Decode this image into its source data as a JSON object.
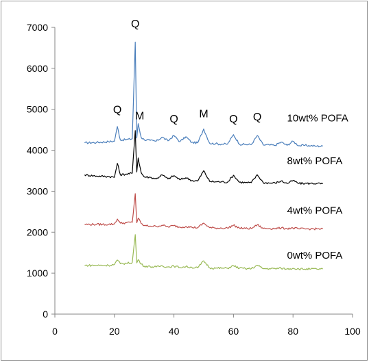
{
  "chart_data": {
    "type": "line",
    "title": "",
    "xlabel": "",
    "ylabel": "",
    "xlim": [
      0,
      100
    ],
    "ylim": [
      0,
      7000
    ],
    "x_ticks": [
      "0",
      "20",
      "40",
      "60",
      "80",
      "100"
    ],
    "y_ticks": [
      "0",
      "1000",
      "2000",
      "3000",
      "4000",
      "5000",
      "6000",
      "7000"
    ],
    "grid": false,
    "legend": "none",
    "series": [
      {
        "name": "10wt% POFA",
        "color": "#4a7ebb",
        "x": [
          10,
          14,
          18,
          20,
          21,
          22,
          24,
          26,
          27,
          27.5,
          28,
          29,
          30,
          32,
          34,
          36,
          38,
          40,
          42,
          44,
          46,
          48,
          50,
          52,
          54,
          56,
          58,
          60,
          62,
          64,
          66,
          68,
          70,
          72,
          74,
          76,
          78,
          80,
          82,
          84,
          86,
          88,
          90
        ],
        "y": [
          4180,
          4190,
          4210,
          4220,
          4580,
          4250,
          4260,
          4280,
          6640,
          4300,
          4650,
          4310,
          4260,
          4240,
          4220,
          4320,
          4230,
          4360,
          4210,
          4330,
          4190,
          4180,
          4520,
          4170,
          4160,
          4150,
          4150,
          4380,
          4150,
          4140,
          4140,
          4360,
          4130,
          4130,
          4120,
          4200,
          4120,
          4220,
          4110,
          4120,
          4110,
          4100,
          4100
        ]
      },
      {
        "name": "8wt% POFA",
        "color": "#000000",
        "x": [
          10,
          14,
          18,
          20,
          21,
          22,
          24,
          26,
          27,
          27.5,
          28,
          29,
          30,
          32,
          34,
          36,
          38,
          40,
          42,
          44,
          46,
          48,
          50,
          52,
          54,
          56,
          58,
          60,
          62,
          64,
          66,
          68,
          70,
          72,
          74,
          76,
          78,
          80,
          82,
          84,
          86,
          88,
          90
        ],
        "y": [
          3400,
          3370,
          3360,
          3340,
          3680,
          3400,
          3420,
          3440,
          4480,
          3470,
          3810,
          3450,
          3350,
          3340,
          3300,
          3400,
          3300,
          3380,
          3280,
          3330,
          3260,
          3250,
          3500,
          3240,
          3230,
          3230,
          3220,
          3390,
          3220,
          3210,
          3210,
          3400,
          3210,
          3200,
          3200,
          3250,
          3190,
          3260,
          3190,
          3190,
          3190,
          3190,
          3180
        ]
      },
      {
        "name": "4wt% POFA",
        "color": "#be4b48",
        "x": [
          10,
          14,
          18,
          20,
          21,
          22,
          24,
          26,
          27,
          27.5,
          28,
          29,
          30,
          32,
          34,
          36,
          38,
          40,
          42,
          44,
          46,
          48,
          50,
          52,
          54,
          56,
          58,
          60,
          62,
          64,
          66,
          68,
          70,
          72,
          74,
          76,
          78,
          80,
          82,
          84,
          86,
          88,
          90
        ],
        "y": [
          2190,
          2190,
          2190,
          2200,
          2320,
          2220,
          2230,
          2240,
          2940,
          2230,
          2340,
          2210,
          2160,
          2150,
          2140,
          2170,
          2130,
          2160,
          2120,
          2140,
          2120,
          2110,
          2220,
          2110,
          2100,
          2100,
          2100,
          2170,
          2100,
          2090,
          2090,
          2180,
          2090,
          2090,
          2090,
          2100,
          2090,
          2100,
          2080,
          2080,
          2080,
          2080,
          2080
        ]
      },
      {
        "name": "0wt% POFA",
        "color": "#98b954",
        "x": [
          10,
          14,
          18,
          20,
          21,
          22,
          24,
          26,
          27,
          27.5,
          28,
          29,
          30,
          32,
          34,
          36,
          38,
          40,
          42,
          44,
          46,
          48,
          50,
          52,
          54,
          56,
          58,
          60,
          62,
          64,
          66,
          68,
          70,
          72,
          74,
          76,
          78,
          80,
          82,
          84,
          86,
          88,
          90
        ],
        "y": [
          1190,
          1190,
          1190,
          1210,
          1320,
          1230,
          1240,
          1260,
          1940,
          1250,
          1330,
          1220,
          1170,
          1160,
          1150,
          1180,
          1150,
          1170,
          1140,
          1160,
          1140,
          1130,
          1300,
          1130,
          1120,
          1120,
          1120,
          1180,
          1120,
          1110,
          1110,
          1190,
          1110,
          1110,
          1110,
          1120,
          1100,
          1120,
          1100,
          1100,
          1100,
          1100,
          1100
        ]
      }
    ],
    "annotations": [
      {
        "text": "Q",
        "x": 27,
        "y": 7000
      },
      {
        "text": "Q",
        "x": 21,
        "y": 4900
      },
      {
        "text": "M",
        "x": 28.5,
        "y": 4750
      },
      {
        "text": "Q",
        "x": 40,
        "y": 4680
      },
      {
        "text": "M",
        "x": 50,
        "y": 4800
      },
      {
        "text": "Q",
        "x": 60,
        "y": 4680
      },
      {
        "text": "Q",
        "x": 68,
        "y": 4730
      }
    ],
    "series_labels": [
      {
        "text": "10wt% POFA",
        "x": 78,
        "y": 4700
      },
      {
        "text": "8wt%  POFA",
        "x": 78,
        "y": 3660
      },
      {
        "text": "4wt%  POFA",
        "x": 78,
        "y": 2450
      },
      {
        "text": "0wt%  POFA",
        "x": 78,
        "y": 1350
      }
    ]
  }
}
